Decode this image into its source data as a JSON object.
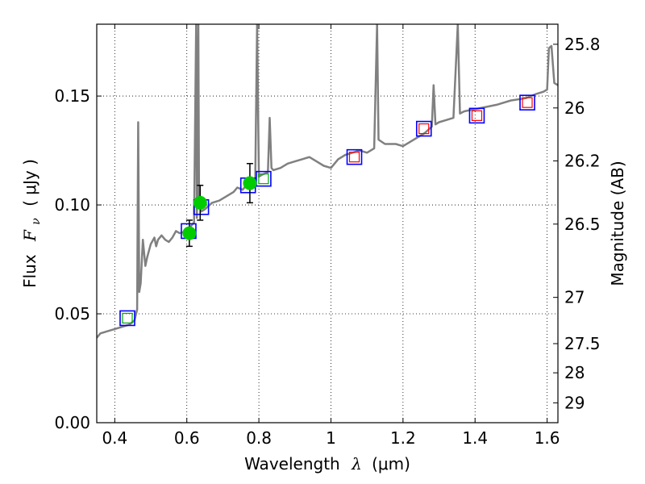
{
  "chart_data": {
    "type": "scatter",
    "xlabel": "Wavelength",
    "xlabel_symbol": "λ",
    "xlabel_unit": "(μm)",
    "ylabel": "Flux",
    "ylabel_symbol": "F",
    "ylabel_sub": "ν",
    "ylabel_unit": "( μJy )",
    "y2label": "Magnitude (AB)",
    "xlim": [
      0.35,
      1.63
    ],
    "ylim": [
      0.0,
      0.183
    ],
    "grid": true,
    "x_ticks": [
      {
        "value": 0.4,
        "label": "0.4"
      },
      {
        "value": 0.6,
        "label": "0.6"
      },
      {
        "value": 0.8,
        "label": "0.8"
      },
      {
        "value": 1.0,
        "label": "1"
      },
      {
        "value": 1.2,
        "label": "1.2"
      },
      {
        "value": 1.4,
        "label": "1.4"
      },
      {
        "value": 1.6,
        "label": "1.6"
      }
    ],
    "y_ticks": [
      {
        "value": 0.0,
        "label": "0.00"
      },
      {
        "value": 0.05,
        "label": "0.05"
      },
      {
        "value": 0.1,
        "label": "0.10"
      },
      {
        "value": 0.15,
        "label": "0.15"
      }
    ],
    "mag_ticks": [
      {
        "value": 25.8,
        "label": "25.8"
      },
      {
        "value": 26.0,
        "label": "26"
      },
      {
        "value": 26.2,
        "label": "26.2"
      },
      {
        "value": 26.5,
        "label": "26.5"
      },
      {
        "value": 27.0,
        "label": "27"
      },
      {
        "value": 27.5,
        "label": "27.5"
      },
      {
        "value": 28.0,
        "label": "28"
      },
      {
        "value": 29.0,
        "label": "29"
      }
    ],
    "mag_zeropoint": 23.9,
    "colors": {
      "spectrum": "#808080",
      "model_box": "#0000ff",
      "observed_optical": "#00cc00",
      "nir_model": "#ff0000",
      "green_box": "#00aa00",
      "errorbar": "#000000"
    },
    "series": [
      {
        "kind": "spectrum",
        "points": [
          [
            0.35,
            0.039
          ],
          [
            0.36,
            0.041
          ],
          [
            0.38,
            0.042
          ],
          [
            0.4,
            0.043
          ],
          [
            0.42,
            0.044
          ],
          [
            0.44,
            0.045
          ],
          [
            0.455,
            0.047
          ],
          [
            0.462,
            0.052
          ],
          [
            0.465,
            0.138
          ],
          [
            0.468,
            0.06
          ],
          [
            0.472,
            0.064
          ],
          [
            0.478,
            0.084
          ],
          [
            0.485,
            0.072
          ],
          [
            0.49,
            0.076
          ],
          [
            0.5,
            0.082
          ],
          [
            0.51,
            0.085
          ],
          [
            0.515,
            0.081
          ],
          [
            0.52,
            0.084
          ],
          [
            0.53,
            0.086
          ],
          [
            0.54,
            0.084
          ],
          [
            0.55,
            0.083
          ],
          [
            0.56,
            0.085
          ],
          [
            0.57,
            0.088
          ],
          [
            0.58,
            0.087
          ],
          [
            0.6,
            0.088
          ],
          [
            0.61,
            0.09
          ],
          [
            0.62,
            0.092
          ],
          [
            0.626,
            0.183
          ],
          [
            0.628,
            0.094
          ],
          [
            0.632,
            0.183
          ],
          [
            0.634,
            0.1
          ],
          [
            0.64,
            0.097
          ],
          [
            0.65,
            0.098
          ],
          [
            0.67,
            0.101
          ],
          [
            0.69,
            0.102
          ],
          [
            0.71,
            0.104
          ],
          [
            0.73,
            0.106
          ],
          [
            0.74,
            0.108
          ],
          [
            0.755,
            0.107
          ],
          [
            0.77,
            0.11
          ],
          [
            0.78,
            0.111
          ],
          [
            0.79,
            0.112
          ],
          [
            0.795,
            0.183
          ],
          [
            0.8,
            0.113
          ],
          [
            0.81,
            0.114
          ],
          [
            0.825,
            0.115
          ],
          [
            0.83,
            0.14
          ],
          [
            0.835,
            0.117
          ],
          [
            0.84,
            0.116
          ],
          [
            0.86,
            0.117
          ],
          [
            0.88,
            0.119
          ],
          [
            0.9,
            0.12
          ],
          [
            0.92,
            0.121
          ],
          [
            0.94,
            0.122
          ],
          [
            0.96,
            0.12
          ],
          [
            0.98,
            0.118
          ],
          [
            1.0,
            0.117
          ],
          [
            1.02,
            0.121
          ],
          [
            1.04,
            0.123
          ],
          [
            1.06,
            0.124
          ],
          [
            1.08,
            0.125
          ],
          [
            1.1,
            0.124
          ],
          [
            1.12,
            0.126
          ],
          [
            1.128,
            0.183
          ],
          [
            1.132,
            0.13
          ],
          [
            1.15,
            0.128
          ],
          [
            1.18,
            0.128
          ],
          [
            1.2,
            0.127
          ],
          [
            1.22,
            0.129
          ],
          [
            1.24,
            0.131
          ],
          [
            1.26,
            0.133
          ],
          [
            1.28,
            0.136
          ],
          [
            1.285,
            0.155
          ],
          [
            1.29,
            0.137
          ],
          [
            1.3,
            0.138
          ],
          [
            1.32,
            0.139
          ],
          [
            1.34,
            0.14
          ],
          [
            1.352,
            0.183
          ],
          [
            1.358,
            0.142
          ],
          [
            1.37,
            0.143
          ],
          [
            1.4,
            0.144
          ],
          [
            1.43,
            0.145
          ],
          [
            1.46,
            0.146
          ],
          [
            1.5,
            0.148
          ],
          [
            1.54,
            0.149
          ],
          [
            1.57,
            0.151
          ],
          [
            1.59,
            0.152
          ],
          [
            1.6,
            0.153
          ],
          [
            1.605,
            0.172
          ],
          [
            1.612,
            0.173
          ],
          [
            1.62,
            0.156
          ],
          [
            1.63,
            0.155
          ]
        ]
      },
      {
        "kind": "model-box",
        "points": [
          [
            0.435,
            0.048
          ],
          [
            0.605,
            0.088
          ],
          [
            0.64,
            0.099
          ],
          [
            0.77,
            0.109
          ],
          [
            0.813,
            0.112
          ],
          [
            1.065,
            0.122
          ],
          [
            1.258,
            0.135
          ],
          [
            1.405,
            0.141
          ],
          [
            1.545,
            0.147
          ]
        ]
      },
      {
        "kind": "observed-point",
        "points": [
          {
            "x": 0.607,
            "y": 0.087,
            "yerr": 0.006
          },
          {
            "x": 0.637,
            "y": 0.101,
            "yerr": 0.008
          },
          {
            "x": 0.775,
            "y": 0.11,
            "yerr": 0.009
          }
        ]
      },
      {
        "kind": "small-green-box",
        "points": [
          [
            0.435,
            0.048
          ],
          [
            0.813,
            0.112
          ]
        ]
      },
      {
        "kind": "small-red-box",
        "points": [
          [
            1.065,
            0.122
          ],
          [
            1.258,
            0.135
          ],
          [
            1.405,
            0.141
          ],
          [
            1.545,
            0.147
          ]
        ]
      }
    ]
  }
}
